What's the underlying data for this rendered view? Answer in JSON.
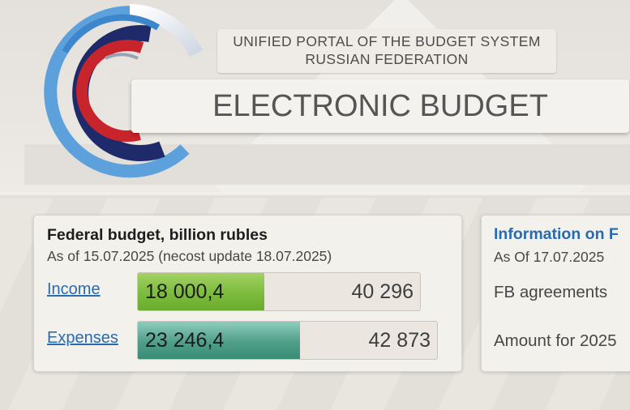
{
  "header": {
    "portal_line1": "UNIFIED PORTAL OF THE BUDGET SYSTEM",
    "portal_line2": "RUSSIAN FEDERATION",
    "title": "ELECTRONIC BUDGET",
    "logo_icon": "budget-logo-icon",
    "colors": {
      "logo_red": "#c8242b",
      "logo_navy": "#1f2a6b",
      "logo_blue": "#3e86cc"
    }
  },
  "federal_budget": {
    "title": "Federal budget, billion rubles",
    "as_of": "As of 15.07.2025 (necost update 18.07.2025)",
    "rows": [
      {
        "label": "Income",
        "value": "18 000,4",
        "total": "40 296",
        "fill_fraction": 0.447,
        "color": "#7fbd40"
      },
      {
        "label": "Expenses",
        "value": "23 246,4",
        "total": "42 873",
        "fill_fraction": 0.542,
        "color": "#4f9e88"
      }
    ]
  },
  "information_panel": {
    "title": "Information on F",
    "as_of": "As Of 17.07.2025",
    "line1": "FB agreements",
    "line2": "Amount for 2025"
  }
}
